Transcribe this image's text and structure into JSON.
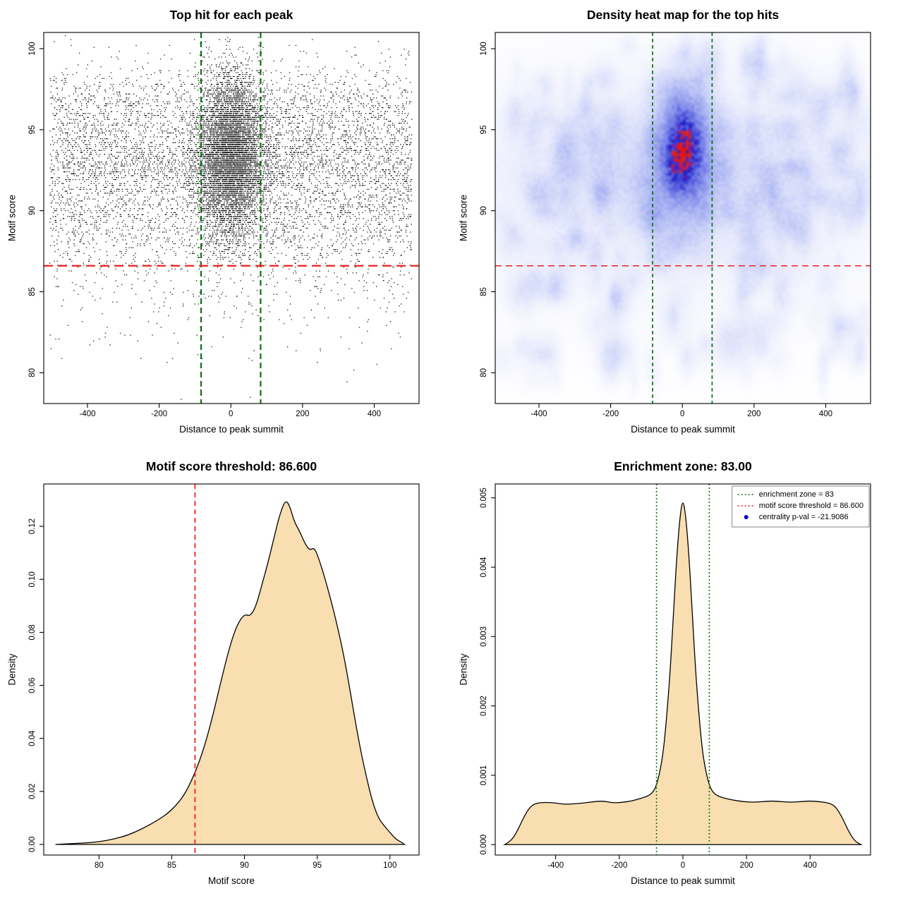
{
  "figure": {
    "background": "#ffffff"
  },
  "chart_data": [
    {
      "id": "top-hits-scatter",
      "type": "scatter",
      "title": "Top hit for each peak",
      "xlabel": "Distance to peak summit",
      "ylabel": "Motif score",
      "xlim": [
        -522,
        525
      ],
      "ylim": [
        78.1,
        101.0
      ],
      "xticks": [
        -400,
        -200,
        0,
        200,
        400
      ],
      "xtick_labels": [
        "-400",
        "-200",
        "0",
        "200",
        "400"
      ],
      "yticks": [
        80,
        85,
        90,
        95,
        100
      ],
      "ytick_labels": [
        "80",
        "85",
        "90",
        "95",
        "100"
      ],
      "point_color": "#000000",
      "points": {
        "seed": 42,
        "n_background": 7000,
        "n_cluster": 6200,
        "x_uniform": [
          -505,
          505
        ],
        "cluster_x_sd": 46,
        "cluster_y_mean": 93.4,
        "cluster_y_sd": 2.5,
        "y_quantum": 0.12
      },
      "vlines": [
        {
          "x": -83,
          "color": "#0d720d",
          "dash": [
            8,
            5
          ],
          "width": 2.2
        },
        {
          "x": 83,
          "color": "#0d720d",
          "dash": [
            8,
            5
          ],
          "width": 2.2
        }
      ],
      "hlines": [
        {
          "y": 86.6,
          "color": "#ee2020",
          "dash": [
            13,
            7
          ],
          "width": 2.2
        }
      ]
    },
    {
      "id": "top-hits-heatmap",
      "type": "heatmap",
      "title": "Density heat map for the top hits",
      "xlabel": "Distance to peak summit",
      "ylabel": "Motif score",
      "xlim": [
        -522,
        525
      ],
      "ylim": [
        78.1,
        101.0
      ],
      "xticks": [
        -400,
        -200,
        0,
        200,
        400
      ],
      "xtick_labels": [
        "-400",
        "-200",
        "0",
        "200",
        "400"
      ],
      "yticks": [
        80,
        85,
        90,
        95,
        100
      ],
      "ytick_labels": [
        "80",
        "85",
        "90",
        "95",
        "100"
      ],
      "components": [
        {
          "x": 0,
          "sx": 340,
          "y": 92.3,
          "sy": 3.1,
          "w": 0.22
        },
        {
          "x": 0,
          "sx": 400,
          "y": 91.3,
          "sy": 5.6,
          "w": 0.1
        },
        {
          "x": 0,
          "sx": 60,
          "y": 93.3,
          "sy": 2.9,
          "w": 0.55
        },
        {
          "x": 0,
          "sx": 34,
          "y": 94.7,
          "sy": 1.5,
          "w": 0.55
        },
        {
          "x": -4,
          "sx": 30,
          "y": 92.9,
          "sy": 1.1,
          "w": 0.42
        },
        {
          "x": 0,
          "sx": 46,
          "y": 96.9,
          "sy": 1.3,
          "w": 0.16
        }
      ],
      "speckles": {
        "seed": 7,
        "n": 260,
        "xrange": [
          -515,
          515
        ],
        "yrange": [
          79.5,
          100.6
        ],
        "sx": [
          10,
          30
        ],
        "sy": [
          0.35,
          0.95
        ],
        "w": [
          0.05,
          0.13
        ]
      },
      "noise": {
        "seed": 99,
        "amp": 0.28
      },
      "colormap": [
        [
          0.0,
          "#ffffff"
        ],
        [
          0.05,
          "#f7f8fe"
        ],
        [
          0.14,
          "#e8ebfc"
        ],
        [
          0.26,
          "#ccd3f8"
        ],
        [
          0.4,
          "#a9b3f2"
        ],
        [
          0.53,
          "#8690ea"
        ],
        [
          0.65,
          "#5f67e0"
        ],
        [
          0.74,
          "#3a3ed6"
        ],
        [
          0.795,
          "#1f1fc6"
        ],
        [
          0.825,
          "#801fa8"
        ],
        [
          0.86,
          "#d32525"
        ],
        [
          1.0,
          "#ea0f0f"
        ]
      ],
      "vlines": [
        {
          "x": -83,
          "color": "#0d720d",
          "dash": [
            5,
            4
          ],
          "width": 1.7
        },
        {
          "x": 83,
          "color": "#0d720d",
          "dash": [
            5,
            4
          ],
          "width": 1.7
        }
      ],
      "hlines": [
        {
          "y": 86.6,
          "color": "#ee2020",
          "dash": [
            9,
            6
          ],
          "width": 1.5
        }
      ]
    },
    {
      "id": "motif-score-density",
      "type": "area",
      "title": "Motif score threshold: 86.600",
      "xlabel": "Motif score",
      "ylabel": "Density",
      "xlim": [
        76.2,
        102
      ],
      "ylim": [
        -0.004,
        0.136
      ],
      "xticks": [
        80,
        85,
        90,
        95,
        100
      ],
      "xtick_labels": [
        "80",
        "85",
        "90",
        "95",
        "100"
      ],
      "yticks": [
        0,
        0.02,
        0.04,
        0.06,
        0.08,
        0.1,
        0.12
      ],
      "ytick_labels": [
        "0.00",
        "0.02",
        "0.04",
        "0.06",
        "0.08",
        "0.10",
        "0.12"
      ],
      "fill": "#f8deb0",
      "curve": [
        [
          77,
          0
        ],
        [
          79,
          0.0005
        ],
        [
          80,
          0.001
        ],
        [
          81,
          0.002
        ],
        [
          82,
          0.0035
        ],
        [
          83,
          0.006
        ],
        [
          84,
          0.009
        ],
        [
          84.8,
          0.012
        ],
        [
          85.5,
          0.016
        ],
        [
          86,
          0.02
        ],
        [
          86.6,
          0.027
        ],
        [
          87.2,
          0.036
        ],
        [
          87.8,
          0.048
        ],
        [
          88.4,
          0.062
        ],
        [
          89,
          0.075
        ],
        [
          89.5,
          0.083
        ],
        [
          90,
          0.087
        ],
        [
          90.4,
          0.086
        ],
        [
          90.8,
          0.09
        ],
        [
          91.2,
          0.098
        ],
        [
          91.6,
          0.106
        ],
        [
          92,
          0.115
        ],
        [
          92.4,
          0.124
        ],
        [
          92.8,
          0.13
        ],
        [
          93.1,
          0.128
        ],
        [
          93.4,
          0.122
        ],
        [
          93.8,
          0.118
        ],
        [
          94.2,
          0.113
        ],
        [
          94.5,
          0.111
        ],
        [
          94.8,
          0.112
        ],
        [
          95.1,
          0.108
        ],
        [
          95.5,
          0.101
        ],
        [
          96,
          0.091
        ],
        [
          96.4,
          0.082
        ],
        [
          96.8,
          0.072
        ],
        [
          97.2,
          0.06
        ],
        [
          97.6,
          0.047
        ],
        [
          98,
          0.035
        ],
        [
          98.4,
          0.025
        ],
        [
          98.8,
          0.016
        ],
        [
          99.2,
          0.01
        ],
        [
          99.6,
          0.007
        ],
        [
          100,
          0.0045
        ],
        [
          100.4,
          0.002
        ],
        [
          100.8,
          0.0008
        ],
        [
          101,
          0
        ]
      ],
      "vlines": [
        {
          "x": 86.6,
          "color": "#ee2020",
          "dash": [
            7,
            5
          ],
          "width": 1.8
        }
      ],
      "hlines": []
    },
    {
      "id": "summit-distance-density",
      "type": "area",
      "title": "Enrichment zone: 83.00",
      "xlabel": "Distance to peak summit",
      "ylabel": "Density",
      "xlim": [
        -590,
        590
      ],
      "ylim": [
        -0.00015,
        0.0052
      ],
      "xticks": [
        -400,
        -200,
        0,
        200,
        400
      ],
      "xtick_labels": [
        "-400",
        "-200",
        "0",
        "200",
        "400"
      ],
      "yticks": [
        0,
        0.001,
        0.002,
        0.003,
        0.004,
        0.005
      ],
      "ytick_labels": [
        "0.000",
        "0.001",
        "0.002",
        "0.003",
        "0.004",
        "0.005"
      ],
      "fill": "#f8deb0",
      "curve": [
        [
          -560,
          0
        ],
        [
          -540,
          5e-05
        ],
        [
          -520,
          0.0002
        ],
        [
          -500,
          0.0004
        ],
        [
          -480,
          0.00055
        ],
        [
          -460,
          0.0006
        ],
        [
          -430,
          0.00061
        ],
        [
          -400,
          0.0006
        ],
        [
          -370,
          0.00058
        ],
        [
          -340,
          0.00059
        ],
        [
          -310,
          0.0006
        ],
        [
          -280,
          0.00062
        ],
        [
          -250,
          0.00063
        ],
        [
          -220,
          0.0006
        ],
        [
          -190,
          0.00061
        ],
        [
          -160,
          0.00063
        ],
        [
          -130,
          0.00067
        ],
        [
          -110,
          0.0007
        ],
        [
          -95,
          0.00075
        ],
        [
          -83,
          0.00085
        ],
        [
          -70,
          0.0011
        ],
        [
          -60,
          0.0014
        ],
        [
          -50,
          0.0019
        ],
        [
          -40,
          0.0025
        ],
        [
          -30,
          0.0033
        ],
        [
          -20,
          0.0041
        ],
        [
          -10,
          0.0047
        ],
        [
          0,
          0.005
        ],
        [
          10,
          0.0047
        ],
        [
          20,
          0.0041
        ],
        [
          30,
          0.0033
        ],
        [
          40,
          0.0025
        ],
        [
          50,
          0.0019
        ],
        [
          60,
          0.0014
        ],
        [
          70,
          0.0011
        ],
        [
          83,
          0.00085
        ],
        [
          95,
          0.00075
        ],
        [
          110,
          0.0007
        ],
        [
          130,
          0.00067
        ],
        [
          160,
          0.00064
        ],
        [
          190,
          0.00062
        ],
        [
          220,
          0.00061
        ],
        [
          250,
          0.00062
        ],
        [
          280,
          0.00063
        ],
        [
          310,
          0.00062
        ],
        [
          340,
          0.00061
        ],
        [
          370,
          0.00062
        ],
        [
          400,
          0.00063
        ],
        [
          430,
          0.00062
        ],
        [
          460,
          0.0006
        ],
        [
          480,
          0.00055
        ],
        [
          500,
          0.0004
        ],
        [
          520,
          0.0002
        ],
        [
          540,
          5e-05
        ],
        [
          560,
          0
        ]
      ],
      "vlines": [
        {
          "x": -83,
          "color": "#0d720d",
          "dash": [
            2,
            3
          ],
          "width": 1.6
        },
        {
          "x": 83,
          "color": "#0d720d",
          "dash": [
            2,
            3
          ],
          "width": 1.6
        }
      ],
      "hlines": [],
      "legend": {
        "items": [
          {
            "type": "line",
            "color": "#0d720d",
            "dash": [
              2,
              3
            ],
            "label": "enrichment zone = 83"
          },
          {
            "type": "line",
            "color": "#ee2020",
            "dash": [
              2,
              3
            ],
            "label": "motif score threshold = 86.600"
          },
          {
            "type": "point",
            "color": "#0000cd",
            "label": "centrality p-val = -21.9086"
          }
        ]
      }
    }
  ]
}
